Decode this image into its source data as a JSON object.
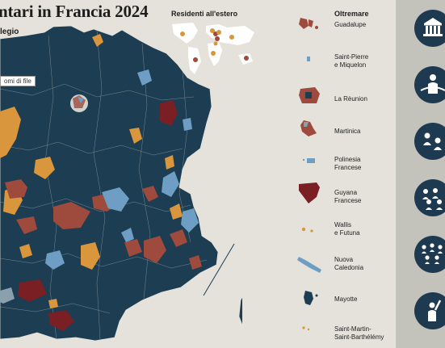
{
  "header": {
    "title": "ntari in Francia 2024",
    "subtitle": "legio",
    "tooltip": "omi di file"
  },
  "abroad": {
    "title": "Residenti all'estero"
  },
  "overseas": {
    "title": "Oltremare",
    "items": [
      {
        "label": "Guadalupe"
      },
      {
        "label": "Saint-Pierre\ne Miquelon"
      },
      {
        "label": "La Rèunion"
      },
      {
        "label": "Martinica"
      },
      {
        "label": "Polinesia\nFrancese"
      },
      {
        "label": "Guyana\nFrancese"
      },
      {
        "label": "Wallis\ne Futuna"
      },
      {
        "label": "Nuova\nCaledonia"
      },
      {
        "label": "Mayotte"
      },
      {
        "label": "Saint-Martin-\nSaint-Barthélémy"
      }
    ]
  },
  "colors": {
    "background": "#e4e2db",
    "base": "#1d3d52",
    "orange": "#d9963c",
    "red": "#9e4a3c",
    "darkred": "#7a1f24",
    "lightblue": "#6e9ec4",
    "grey": "#8aa0ae",
    "sidebar": "#c3c2bb",
    "icon_circle": "#1e3a50"
  },
  "sidebar": {
    "icons": [
      {
        "name": "parliament-building-icon"
      },
      {
        "name": "assembly-speaker-icon"
      },
      {
        "name": "people-group-icon"
      },
      {
        "name": "crowd-icon"
      },
      {
        "name": "large-crowd-icon"
      },
      {
        "name": "raised-hand-person-icon"
      }
    ]
  }
}
